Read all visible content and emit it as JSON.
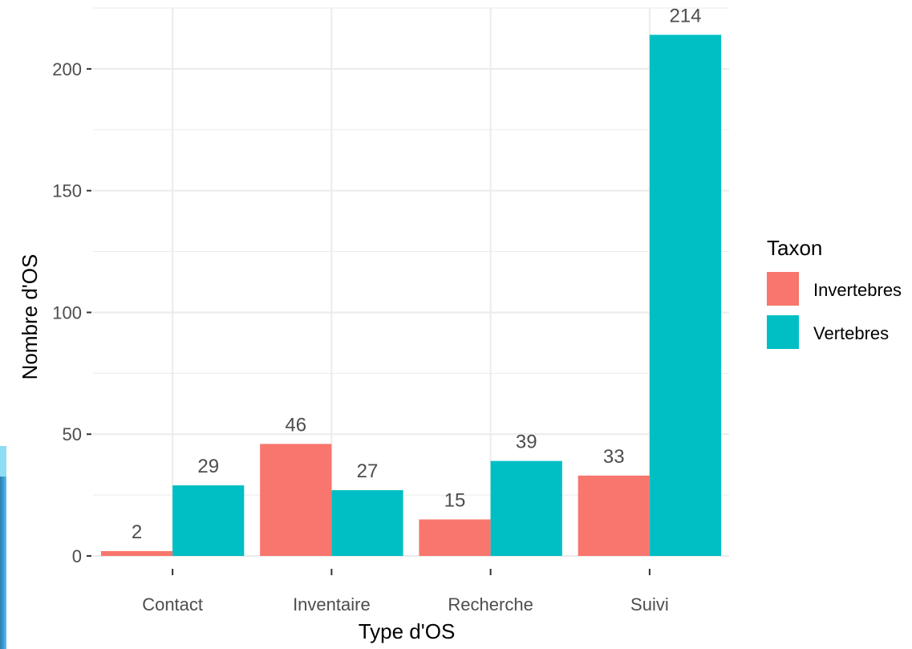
{
  "chart_data": {
    "type": "bar",
    "xlabel": "Type d'OS",
    "ylabel": "Nombre d'OS",
    "categories": [
      "Contact",
      "Inventaire",
      "Recherche",
      "Suivi"
    ],
    "ylim": [
      0,
      225
    ],
    "yticks": [
      0,
      50,
      100,
      150,
      200
    ],
    "grid": true,
    "legend": {
      "title": "Taxon",
      "position": "right"
    },
    "series": [
      {
        "name": "Invertebres",
        "color": "#F8766D",
        "values": [
          2,
          46,
          15,
          33
        ]
      },
      {
        "name": "Vertebres",
        "color": "#00BFC4",
        "values": [
          29,
          27,
          39,
          214
        ]
      }
    ],
    "data_labels": true
  },
  "colors": {
    "grid": "#EBEBEB",
    "axis_text": "#4D4D4D",
    "title_text": "#000000",
    "edge_accent": "#3fa0d8"
  }
}
